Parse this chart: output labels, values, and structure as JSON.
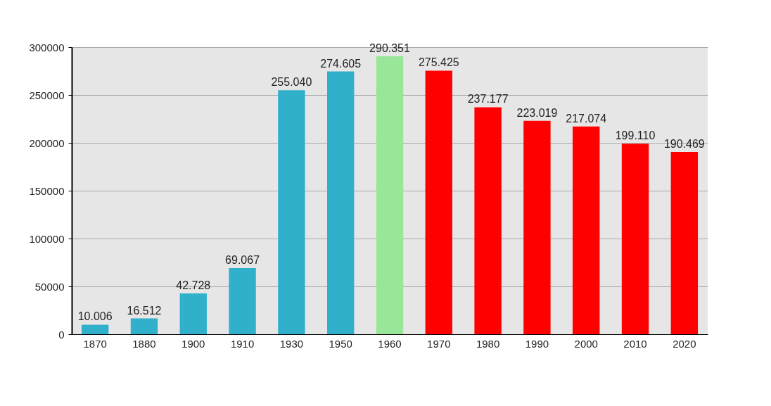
{
  "chart_data": {
    "type": "bar",
    "categories": [
      "1870",
      "1880",
      "1900",
      "1910",
      "1930",
      "1950",
      "1960",
      "1970",
      "1980",
      "1990",
      "2000",
      "2010",
      "2020"
    ],
    "values": [
      10006,
      16512,
      42728,
      69067,
      255040,
      274605,
      290351,
      275425,
      237177,
      223019,
      217074,
      199110,
      190469
    ],
    "value_labels": [
      "10.006",
      "16.512",
      "42.728",
      "69.067",
      "255.040",
      "274.605",
      "290.351",
      "275.425",
      "237.177",
      "223.019",
      "217.074",
      "199.110",
      "190.469"
    ],
    "colors": [
      "#31b0cc",
      "#31b0cc",
      "#31b0cc",
      "#31b0cc",
      "#31b0cc",
      "#31b0cc",
      "#99e699",
      "#ff0000",
      "#ff0000",
      "#ff0000",
      "#ff0000",
      "#ff0000",
      "#ff0000"
    ],
    "ylim": [
      0,
      300000
    ],
    "yticks": [
      0,
      50000,
      100000,
      150000,
      200000,
      250000,
      300000
    ],
    "grid": "y"
  }
}
